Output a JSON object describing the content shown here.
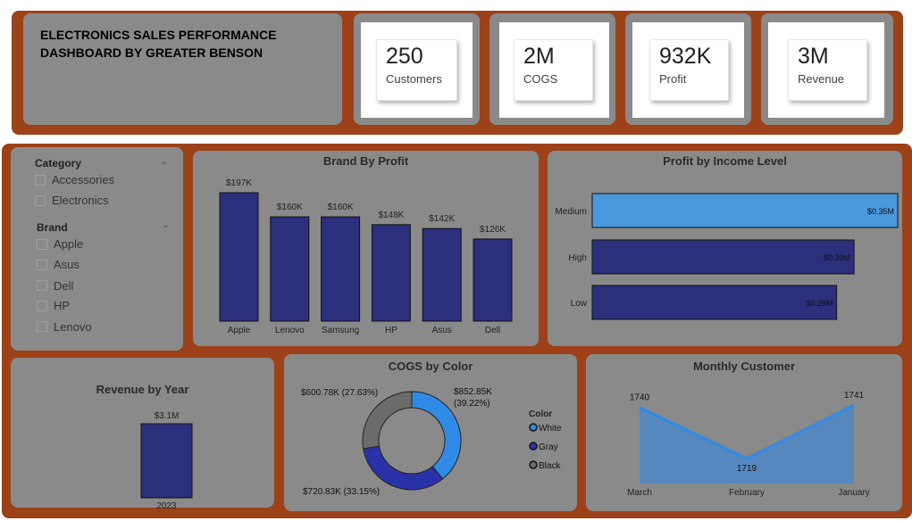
{
  "header": {
    "title_line1": "ELECTRONICS SALES PERFORMANCE",
    "title_line2": "DASHBOARD BY GREATER BENSON"
  },
  "kpis": [
    {
      "value": "250",
      "label": "Customers"
    },
    {
      "value": "2M",
      "label": "COGS"
    },
    {
      "value": "932K",
      "label": "Profit"
    },
    {
      "value": "3M",
      "label": "Revenue"
    }
  ],
  "slicers": {
    "category": {
      "title": "Category",
      "items": [
        "Accessories",
        "Electronics"
      ]
    },
    "brand": {
      "title": "Brand",
      "items": [
        "Apple",
        "Asus",
        "Dell",
        "HP",
        "Lenovo"
      ]
    }
  },
  "chart_data": [
    {
      "id": "brand_profit",
      "type": "bar",
      "title": "Brand By Profit",
      "categories": [
        "Apple",
        "Lenovo",
        "Samsung",
        "HP",
        "Asus",
        "Dell"
      ],
      "values": [
        197,
        160,
        160,
        148,
        142,
        126
      ],
      "labels": [
        "$197K",
        "$160K",
        "$160K",
        "$148K",
        "$142K",
        "$126K"
      ],
      "ylim": [
        0,
        197
      ],
      "color": "#2b2f7c"
    },
    {
      "id": "income_profit",
      "type": "bar",
      "orientation": "horizontal",
      "title": "Profit by Income Level",
      "categories": [
        "Medium",
        "High",
        "Low"
      ],
      "values": [
        0.35,
        0.3,
        0.28
      ],
      "labels": [
        "$0.35M",
        "$0.30M",
        "$0.28M"
      ],
      "xlim": [
        0,
        0.35
      ],
      "colors": [
        "#4a99dc",
        "#2b2f7c",
        "#2b2f7c"
      ]
    },
    {
      "id": "revenue_year",
      "type": "bar",
      "title": "Revenue by Year",
      "categories": [
        "2023"
      ],
      "values": [
        3.1
      ],
      "labels": [
        "$3.1M"
      ],
      "color": "#2b2f7c"
    },
    {
      "id": "cogs_color",
      "type": "pie",
      "title": "COGS by Color",
      "legend_title": "Color",
      "series": [
        {
          "name": "White",
          "value": 852.85,
          "label_value": "$852.85K",
          "label_pct": "(39.22%)",
          "color": "#2f8be6"
        },
        {
          "name": "Gray",
          "value": 720.83,
          "label_value": "$720.83K (33.15%)",
          "label_pct": "",
          "color": "#2a32a8"
        },
        {
          "name": "Black",
          "value": 600.78,
          "label_value": "$600.78K (27.63%)",
          "label_pct": "",
          "color": "#6b6b6b"
        }
      ],
      "legend": "right"
    },
    {
      "id": "monthly_customer",
      "type": "area",
      "title": "Monthly Customer",
      "categories": [
        "March",
        "February",
        "January"
      ],
      "values": [
        1740,
        1719,
        1741
      ],
      "labels": [
        "1740",
        "1719",
        "1741"
      ],
      "ylim": [
        1712,
        1741
      ],
      "color": "#2f8be6"
    }
  ]
}
